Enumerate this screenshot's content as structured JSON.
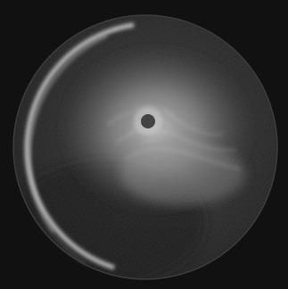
{
  "image": {
    "subject": "",
    "colors": {
      "background": "#111111",
      "disk_dark": "#1a1a1a",
      "disk_mid": "#3a3a3a",
      "limb_glow": "#d8d8d8",
      "cloud_bright": "#bdbdbd",
      "vortex_eye": "#2a2a2a"
    }
  }
}
